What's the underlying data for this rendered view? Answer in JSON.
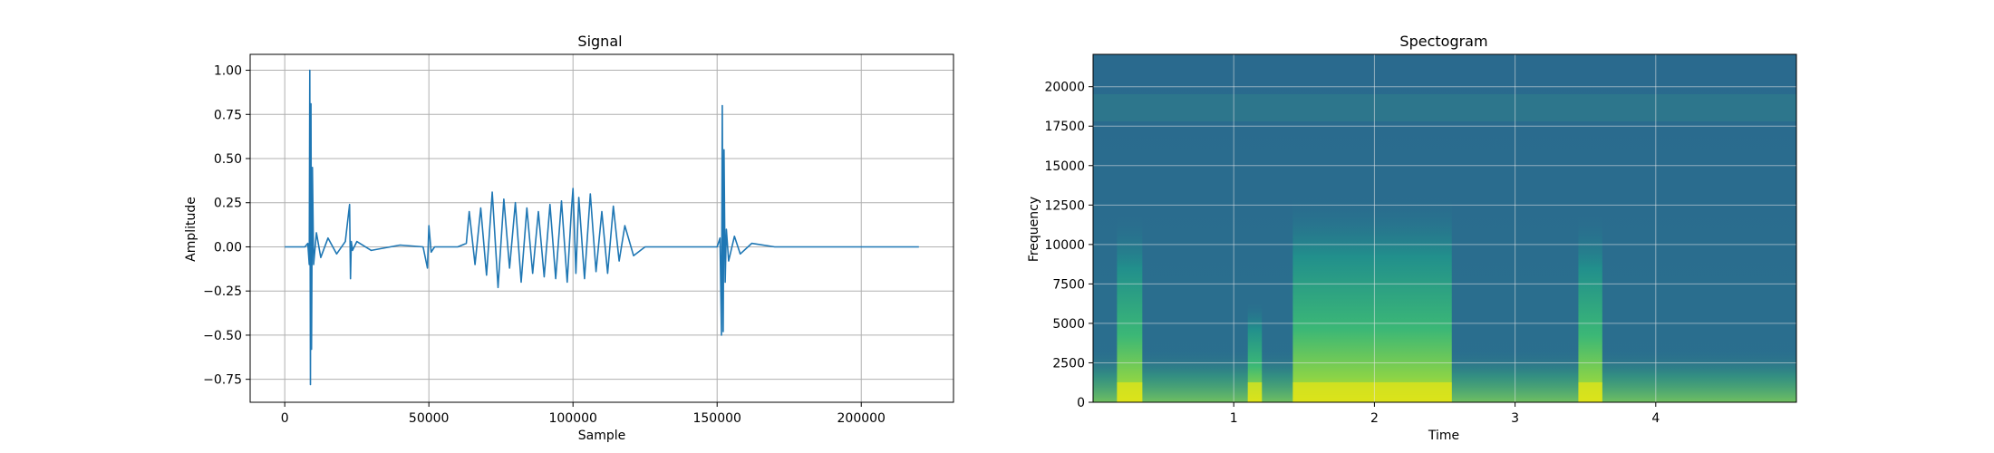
{
  "chart_data": [
    {
      "type": "line",
      "title": "Signal",
      "xlabel": "Sample",
      "ylabel": "Amplitude",
      "xlim": [
        -12000,
        232000
      ],
      "ylim": [
        -0.88,
        1.09
      ],
      "xticks": [
        0,
        50000,
        100000,
        150000,
        200000
      ],
      "xtick_labels": [
        "0",
        "50000",
        "100000",
        "150000",
        "200000"
      ],
      "yticks": [
        -0.75,
        -0.5,
        -0.25,
        0.0,
        0.25,
        0.5,
        0.75,
        1.0
      ],
      "ytick_labels": [
        "−0.75",
        "−0.50",
        "−0.25",
        "0.00",
        "0.25",
        "0.50",
        "0.75",
        "1.00"
      ],
      "grid": true,
      "color": "#1f77b4",
      "series": [
        {
          "x": [
            0,
            7000,
            8000,
            8500,
            8700,
            8900,
            9100,
            9300,
            9600,
            10000,
            11000,
            12500,
            15000,
            18000,
            21000,
            22500,
            22800,
            23100,
            23500,
            25000,
            30000,
            40000,
            48000,
            49500,
            50000,
            50800,
            52000,
            55000,
            60000,
            63000,
            64000,
            66000,
            68000,
            70000,
            72000,
            74000,
            76000,
            78000,
            80000,
            82000,
            84000,
            86000,
            88000,
            90000,
            92000,
            94000,
            96000,
            98000,
            99500,
            100000,
            101000,
            102000,
            104000,
            106000,
            108000,
            110000,
            112000,
            114000,
            116000,
            118000,
            121000,
            125000,
            140000,
            150000,
            151000,
            151500,
            151800,
            152100,
            152400,
            152800,
            153200,
            154000,
            156000,
            158000,
            162000,
            170000,
            190000,
            220000
          ],
          "y": [
            0.0,
            0.0,
            0.02,
            -0.1,
            1.0,
            -0.78,
            0.81,
            -0.58,
            0.45,
            -0.1,
            0.08,
            -0.06,
            0.05,
            -0.04,
            0.03,
            0.24,
            -0.18,
            0.03,
            -0.02,
            0.03,
            -0.02,
            0.01,
            0.0,
            -0.12,
            0.12,
            -0.03,
            0.0,
            0.0,
            0.0,
            0.02,
            0.2,
            -0.1,
            0.22,
            -0.16,
            0.31,
            -0.23,
            0.27,
            -0.12,
            0.25,
            -0.2,
            0.22,
            -0.15,
            0.2,
            -0.17,
            0.24,
            -0.18,
            0.26,
            -0.2,
            0.22,
            0.33,
            -0.15,
            0.28,
            -0.18,
            0.3,
            -0.14,
            0.2,
            -0.15,
            0.23,
            -0.08,
            0.12,
            -0.05,
            0.0,
            0.0,
            0.0,
            0.05,
            -0.5,
            0.8,
            -0.48,
            0.55,
            -0.2,
            0.1,
            -0.08,
            0.06,
            -0.04,
            0.02,
            0.0,
            0.0,
            0.0
          ]
        }
      ]
    },
    {
      "type": "heatmap",
      "title": "Spectogram",
      "xlabel": "Time",
      "ylabel": "Frequency",
      "xlim": [
        0,
        5.0
      ],
      "ylim": [
        0,
        22050
      ],
      "xticks": [
        1,
        2,
        3,
        4
      ],
      "xtick_labels": [
        "1",
        "2",
        "3",
        "4"
      ],
      "yticks": [
        0,
        2500,
        5000,
        7500,
        10000,
        12500,
        15000,
        17500,
        20000
      ],
      "ytick_labels": [
        "0",
        "2500",
        "5000",
        "7500",
        "10000",
        "12500",
        "15000",
        "17500",
        "20000"
      ],
      "grid": true,
      "colormap": "viridis",
      "events": [
        {
          "t_start": 0.17,
          "t_end": 0.35,
          "level": 0.55
        },
        {
          "t_start": 1.1,
          "t_end": 1.2,
          "level": 0.3
        },
        {
          "t_start": 1.42,
          "t_end": 2.55,
          "level": 0.6
        },
        {
          "t_start": 3.45,
          "t_end": 3.62,
          "level": 0.55
        }
      ]
    }
  ]
}
